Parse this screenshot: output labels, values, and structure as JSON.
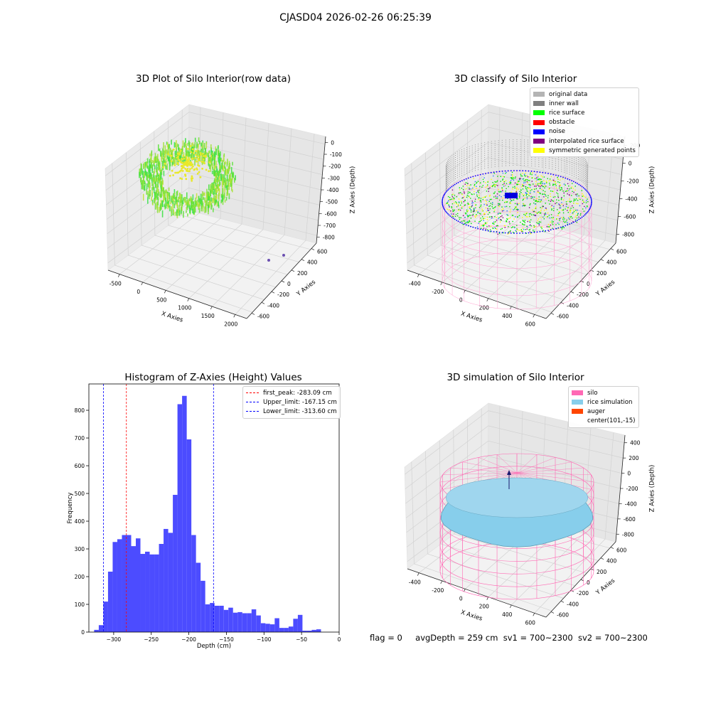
{
  "figure": {
    "suptitle": "CJASD04 2026-02-26 06:25:39",
    "status": {
      "flag": "flag = 0",
      "avg_depth": "avgDepth = 259 cm",
      "sv1": "sv1 = 700~2300",
      "sv2": "sv2 = 700~2300"
    }
  },
  "panels": {
    "raw": {
      "title": "3D Plot of Silo Interior(row data)",
      "xlabel": "X Axies",
      "ylabel": "Y Axies",
      "zlabel": "Z Axies (Depth)",
      "xticks": [
        "-500",
        "0",
        "500",
        "1000",
        "1500",
        "2000"
      ],
      "yticks": [
        "600",
        "400",
        "200",
        "0",
        "-200",
        "-400",
        "-600"
      ],
      "zticks": [
        "0",
        "-100",
        "-200",
        "-300",
        "-400",
        "-500",
        "-600",
        "-700",
        "-800"
      ]
    },
    "classify": {
      "title": "3D classify of Silo Interior",
      "xlabel": "X Axies",
      "ylabel": "Y Axies",
      "zlabel": "Z Axies (Depth)",
      "xticks": [
        "-400",
        "-200",
        "0",
        "200",
        "400",
        "600"
      ],
      "yticks": [
        "600",
        "400",
        "200",
        "0",
        "-200",
        "-400",
        "-600"
      ],
      "zticks": [
        "200",
        "0",
        "-200",
        "-400",
        "-600",
        "-800"
      ],
      "legend": [
        {
          "label": "original data",
          "color": "#b4b4b4"
        },
        {
          "label": "inner wall",
          "color": "#808080"
        },
        {
          "label": "rice surface",
          "color": "#00ff00"
        },
        {
          "label": "obstacle",
          "color": "#ff0000"
        },
        {
          "label": "noise",
          "color": "#0000ff"
        },
        {
          "label": "interpolated rice surface",
          "color": "#800080"
        },
        {
          "label": "symmetric generated points",
          "color": "#ffff00"
        }
      ]
    },
    "simulation": {
      "title": "3D simulation of Silo Interior",
      "xlabel": "X Axies",
      "ylabel": "Y Axies",
      "zlabel": "Z Axies (Depth)",
      "xticks": [
        "-400",
        "-200",
        "0",
        "200",
        "400",
        "600"
      ],
      "yticks": [
        "600",
        "400",
        "200",
        "0",
        "-200",
        "-400",
        "-600"
      ],
      "zticks": [
        "400",
        "200",
        "0",
        "-200",
        "-400",
        "-600",
        "-800"
      ],
      "legend": [
        {
          "label": "silo",
          "color": "#ff69b4"
        },
        {
          "label": "rice simulation",
          "color": "#87ceeb"
        },
        {
          "label": "auger",
          "color": "#ff4500"
        },
        {
          "label": "center(101,-15)",
          "color": ""
        }
      ]
    }
  },
  "chart_data": {
    "type": "bar",
    "title": "Histogram of Z-Axies (Height) Values",
    "xlabel": "Depth (cm)",
    "ylabel": "Frequency",
    "bar_color": "#4c4cff",
    "xlim": [
      -333,
      0
    ],
    "ylim": [
      0,
      895
    ],
    "xticks": [
      -300,
      -250,
      -200,
      -150,
      -100,
      -50,
      0
    ],
    "yticks": [
      0,
      100,
      200,
      300,
      400,
      500,
      600,
      700,
      800
    ],
    "bin_width": 6.16,
    "bin_left": [
      -326.0,
      -319.84,
      -313.68,
      -307.52,
      -301.36,
      -295.2,
      -289.04,
      -282.88,
      -276.72,
      -270.56,
      -264.4,
      -258.24,
      -252.08,
      -245.92,
      -239.76,
      -233.6,
      -227.44,
      -221.28,
      -215.12,
      -208.96,
      -202.8,
      -196.64,
      -190.48,
      -184.32,
      -178.16,
      -172.0,
      -165.84,
      -159.68,
      -153.52,
      -147.36,
      -141.2,
      -135.04,
      -128.88,
      -122.72,
      -116.56,
      -110.4,
      -104.24,
      -98.08,
      -91.92,
      -85.76,
      -79.6,
      -73.44,
      -67.28,
      -61.12,
      -54.96,
      -48.8,
      -42.64,
      -36.48,
      -30.32,
      -24.16,
      -18.0
    ],
    "values": [
      8,
      25,
      110,
      218,
      325,
      335,
      350,
      350,
      310,
      338,
      282,
      290,
      280,
      280,
      318,
      372,
      358,
      495,
      822,
      852,
      695,
      350,
      250,
      185,
      100,
      105,
      95,
      95,
      80,
      88,
      70,
      72,
      68,
      68,
      82,
      60,
      32,
      30,
      28,
      50,
      15,
      15,
      20,
      48,
      62,
      5,
      5,
      8,
      10,
      0,
      0
    ],
    "vlines": [
      {
        "x": -283.09,
        "color": "#ff0000",
        "label": "first_peak: -283.09 cm"
      },
      {
        "x": -167.15,
        "color": "#0000ff",
        "label": "Upper_limit: -167.15 cm"
      },
      {
        "x": -313.6,
        "color": "#0000ff",
        "label": "Lower_limit: -313.60 cm"
      }
    ],
    "legend_position": "upper right",
    "grid": false
  }
}
